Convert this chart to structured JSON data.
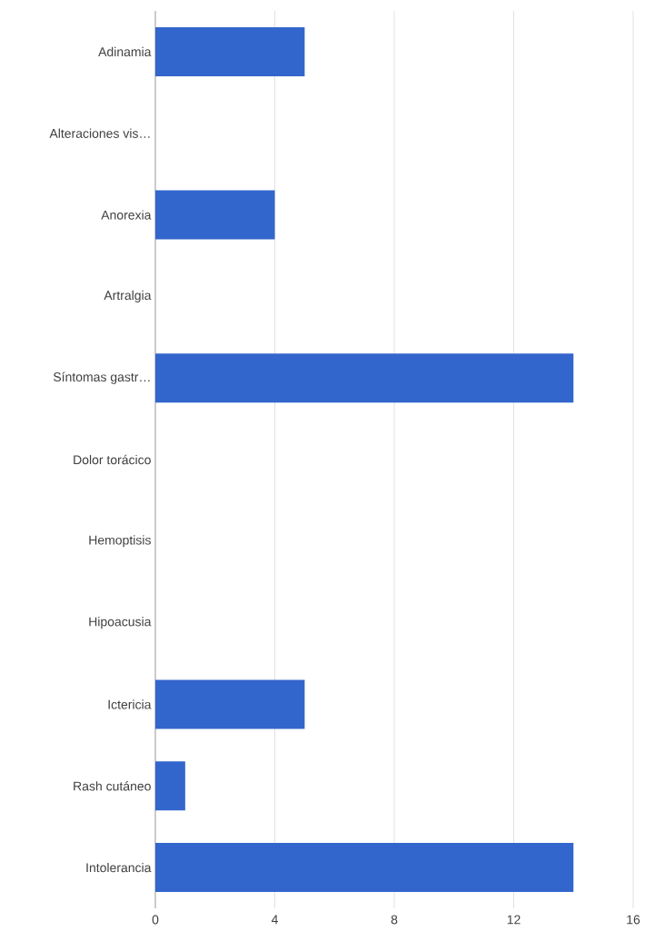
{
  "chart_data": {
    "type": "bar",
    "orientation": "horizontal",
    "categories": [
      "Adinamia",
      "Alteraciones vis…",
      "Anorexia",
      "Artralgia",
      "Síntomas gastr…",
      "Dolor torácico",
      "Hemoptisis",
      "Hipoacusia",
      "Ictericia",
      "Rash cutáneo",
      "Intolerancia"
    ],
    "values": [
      5,
      0,
      4,
      0,
      14,
      0,
      0,
      0,
      5,
      1,
      14
    ],
    "color": "#3366cc",
    "xlim": [
      0,
      16
    ],
    "xticks": [
      0,
      4,
      8,
      12,
      16
    ],
    "grid": "x"
  }
}
